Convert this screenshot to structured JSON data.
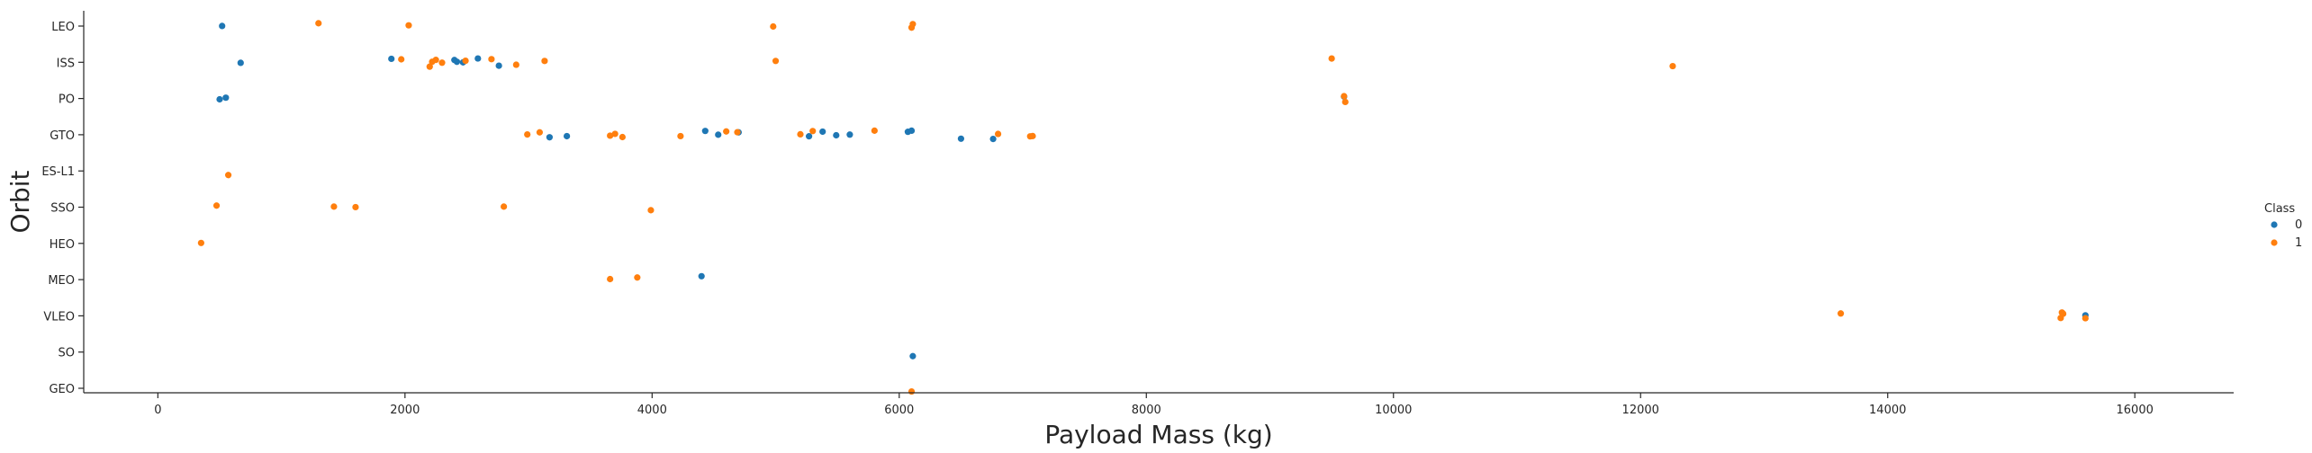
{
  "chart_data": {
    "type": "scatter",
    "title": "",
    "xlabel": "Payload Mass (kg)",
    "ylabel": "Orbit",
    "xlim": [
      -600,
      16800
    ],
    "x_ticks": [
      0,
      2000,
      4000,
      6000,
      8000,
      10000,
      12000,
      14000,
      16000
    ],
    "categories": [
      "LEO",
      "ISS",
      "PO",
      "GTO",
      "ES-L1",
      "SSO",
      "HEO",
      "MEO",
      "VLEO",
      "SO",
      "GEO"
    ],
    "grid": false,
    "legend": {
      "title": "Class",
      "placement": "right",
      "entries": [
        "0",
        "1"
      ]
    },
    "colors": {
      "0": "#1f77b4",
      "1": "#ff7f0e"
    },
    "series": [
      {
        "name": "0",
        "points": [
          {
            "x": 520,
            "y": "LEO"
          },
          {
            "x": 670,
            "y": "ISS"
          },
          {
            "x": 1890,
            "y": "ISS"
          },
          {
            "x": 2400,
            "y": "ISS"
          },
          {
            "x": 2420,
            "y": "ISS"
          },
          {
            "x": 2470,
            "y": "ISS"
          },
          {
            "x": 2590,
            "y": "ISS"
          },
          {
            "x": 2760,
            "y": "ISS"
          },
          {
            "x": 500,
            "y": "PO"
          },
          {
            "x": 550,
            "y": "PO"
          },
          {
            "x": 9600,
            "y": "PO"
          },
          {
            "x": 3170,
            "y": "GTO"
          },
          {
            "x": 3310,
            "y": "GTO"
          },
          {
            "x": 4430,
            "y": "GTO"
          },
          {
            "x": 4535,
            "y": "GTO"
          },
          {
            "x": 4700,
            "y": "GTO"
          },
          {
            "x": 5270,
            "y": "GTO"
          },
          {
            "x": 5380,
            "y": "GTO"
          },
          {
            "x": 5490,
            "y": "GTO"
          },
          {
            "x": 5600,
            "y": "GTO"
          },
          {
            "x": 6070,
            "y": "GTO"
          },
          {
            "x": 6100,
            "y": "GTO"
          },
          {
            "x": 6500,
            "y": "GTO"
          },
          {
            "x": 6760,
            "y": "GTO"
          },
          {
            "x": 4400,
            "y": "MEO"
          },
          {
            "x": 15600,
            "y": "VLEO"
          },
          {
            "x": 6110,
            "y": "SO"
          }
        ]
      },
      {
        "name": "1",
        "points": [
          {
            "x": 1300,
            "y": "LEO"
          },
          {
            "x": 2030,
            "y": "LEO"
          },
          {
            "x": 4980,
            "y": "LEO"
          },
          {
            "x": 6100,
            "y": "LEO"
          },
          {
            "x": 6110,
            "y": "LEO"
          },
          {
            "x": 1970,
            "y": "ISS"
          },
          {
            "x": 2200,
            "y": "ISS"
          },
          {
            "x": 2220,
            "y": "ISS"
          },
          {
            "x": 2250,
            "y": "ISS"
          },
          {
            "x": 2300,
            "y": "ISS"
          },
          {
            "x": 2490,
            "y": "ISS"
          },
          {
            "x": 2700,
            "y": "ISS"
          },
          {
            "x": 2900,
            "y": "ISS"
          },
          {
            "x": 3130,
            "y": "ISS"
          },
          {
            "x": 5000,
            "y": "ISS"
          },
          {
            "x": 9500,
            "y": "ISS"
          },
          {
            "x": 12260,
            "y": "ISS"
          },
          {
            "x": 9600,
            "y": "PO"
          },
          {
            "x": 9610,
            "y": "PO"
          },
          {
            "x": 2990,
            "y": "GTO"
          },
          {
            "x": 3090,
            "y": "GTO"
          },
          {
            "x": 3660,
            "y": "GTO"
          },
          {
            "x": 3700,
            "y": "GTO"
          },
          {
            "x": 3760,
            "y": "GTO"
          },
          {
            "x": 4230,
            "y": "GTO"
          },
          {
            "x": 4600,
            "y": "GTO"
          },
          {
            "x": 4690,
            "y": "GTO"
          },
          {
            "x": 5200,
            "y": "GTO"
          },
          {
            "x": 5300,
            "y": "GTO"
          },
          {
            "x": 5800,
            "y": "GTO"
          },
          {
            "x": 6800,
            "y": "GTO"
          },
          {
            "x": 7060,
            "y": "GTO"
          },
          {
            "x": 7080,
            "y": "GTO"
          },
          {
            "x": 570,
            "y": "ES-L1"
          },
          {
            "x": 475,
            "y": "SSO"
          },
          {
            "x": 1425,
            "y": "SSO"
          },
          {
            "x": 1600,
            "y": "SSO"
          },
          {
            "x": 2800,
            "y": "SSO"
          },
          {
            "x": 3990,
            "y": "SSO"
          },
          {
            "x": 350,
            "y": "HEO"
          },
          {
            "x": 3660,
            "y": "MEO"
          },
          {
            "x": 3880,
            "y": "MEO"
          },
          {
            "x": 13620,
            "y": "VLEO"
          },
          {
            "x": 15400,
            "y": "VLEO"
          },
          {
            "x": 15410,
            "y": "VLEO"
          },
          {
            "x": 15420,
            "y": "VLEO"
          },
          {
            "x": 15600,
            "y": "VLEO"
          },
          {
            "x": 6100,
            "y": "GEO"
          }
        ]
      }
    ]
  }
}
